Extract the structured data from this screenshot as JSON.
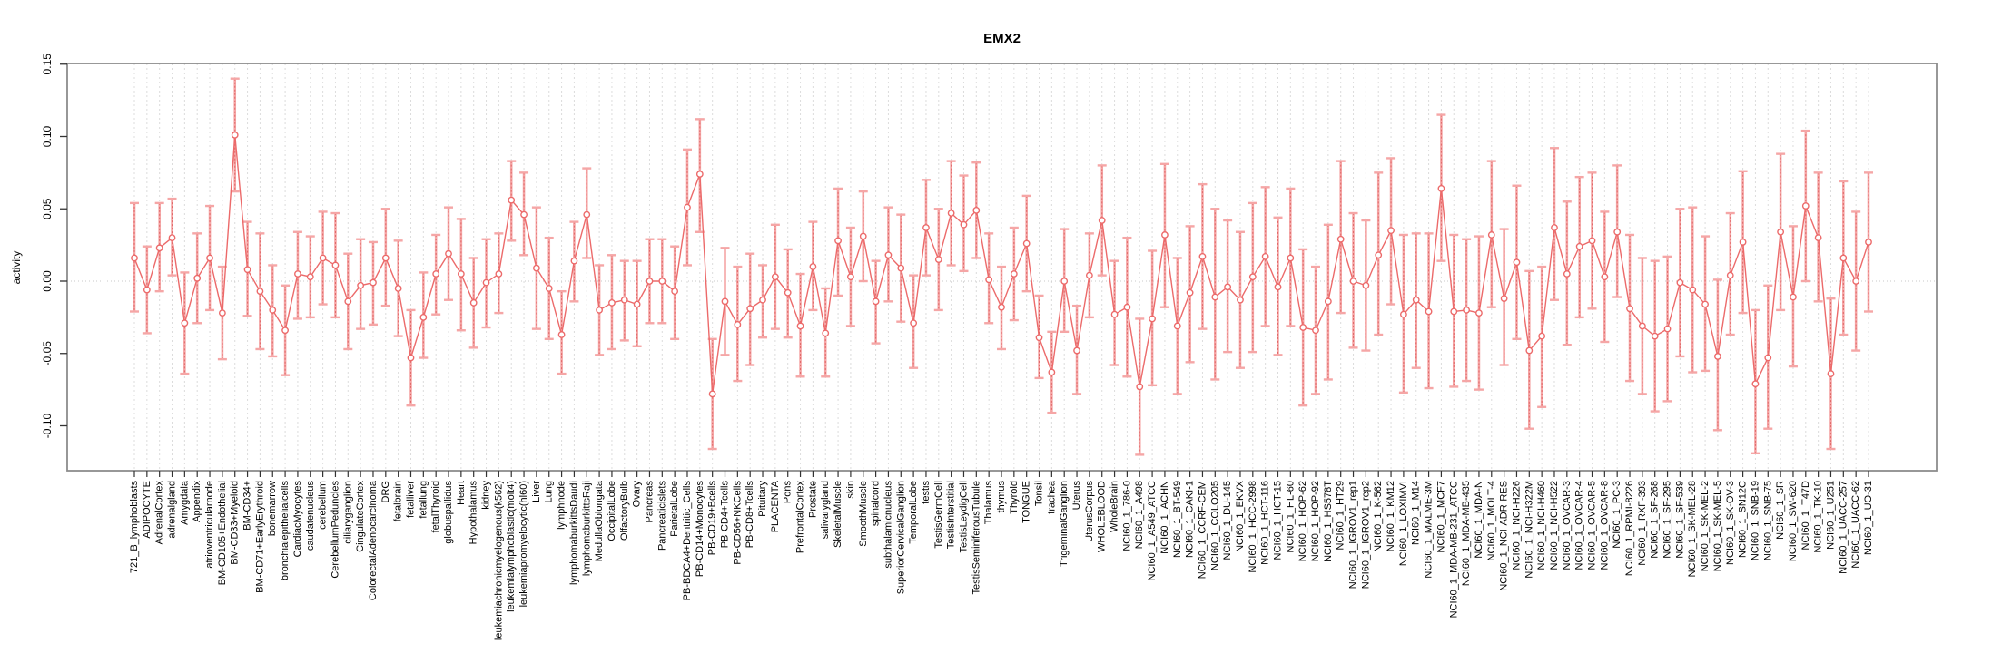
{
  "title": "EMX2",
  "chart_data": {
    "type": "line",
    "subtype": "error-bar-series (R plotCI style)",
    "title": "EMX2",
    "xlabel": "",
    "ylabel": "activity",
    "ylim": [
      -0.131,
      0.15
    ],
    "yticks": [
      0.15,
      0.1,
      0.05,
      0.0,
      -0.05,
      -0.1
    ],
    "ytick_labels": [
      "0.15",
      "0.10",
      "0.05",
      "0.00",
      "-0.05",
      "-0.10"
    ],
    "grid": "light dashed vertical gridline per category; dotted horizontal line at y=0",
    "legend_position": "none",
    "colors": {
      "point_and_line": "#EC6A6A",
      "error_bar": "#F5A6A6",
      "error_bar_core": "#E06868",
      "gridline": "#DCDCDC",
      "zero_line": "#C8C8C8",
      "box": "#8C8C8C",
      "tick": "#333333",
      "text": "#000000",
      "background": "#FFFFFF"
    },
    "n_points": 139,
    "categories": [
      "721_B_lymphoblasts",
      "ADIPOCYTE",
      "AdrenalCortex",
      "adrenalgland",
      "Amygdala",
      "Appendix",
      "atrioventricularnode",
      "BM-CD105+Endothelial",
      "BM-CD33+Myeloid",
      "BM-CD34+",
      "BM-CD71+EarlyErythroid",
      "bonemarrow",
      "bronchialepithelialcells",
      "CardiacMyocytes",
      "caudatenucleus",
      "cerebellum",
      "CerebellumPeduncles",
      "ciliaryganglion",
      "CingulateCortex",
      "ColorectalAdenocarcinoma",
      "DRG",
      "fetalbrain",
      "fetalliver",
      "fetallung",
      "fetalThyroid",
      "globuspallidus",
      "Heart",
      "Hypothalamus",
      "kidney",
      "leukemiachronicmyelogenous(k562)",
      "leukemialymphoblastic(molt4)",
      "leukemiapromyelocytic(hl60)",
      "Liver",
      "Lung",
      "lymphnode",
      "lymphomaburkittsDaudi",
      "lymphomaburkittsRaji",
      "MedullaOblongata",
      "OccipitalLobe",
      "OlfactoryBulb",
      "Ovary",
      "Pancreas",
      "Pancreaticislets",
      "ParietalLobe",
      "PB-BDCA4+Dentritic_Cells",
      "PB-CD14+Monocytes",
      "PB-CD19+Bcells",
      "PB-CD4+Tcells",
      "PB-CD56+NKCells",
      "PB-CD8+Tcells",
      "Pituitary",
      "PLACENTA",
      "Pons",
      "PrefrontalCortex",
      "Prostate",
      "salivarygland",
      "SkeletalMuscle",
      "skin",
      "SmoothMuscle",
      "spinalcord",
      "subthalamicnucleus",
      "SuperiorCervicalGanglion",
      "TemporalLobe",
      "testis",
      "TestisGermCell",
      "TestisInterstitial",
      "TestisLeydigCell",
      "TestisSeminiferousTubule",
      "Thalamus",
      "thymus",
      "Thyroid",
      "TONGUE",
      "Tonsil",
      "trachea",
      "TrigeminalGanglion",
      "Uterus",
      "UterusCorpus",
      "WHOLEBLOOD",
      "WholeBrain",
      "NCI60_1_786-0",
      "NCI60_1_A498",
      "NCI60_1_A549_ATCC",
      "NCI60_1_ACHN",
      "NCI60_1_BT-549",
      "NCI60_1_CAKI-1",
      "NCI60_1_CCRF-CEM",
      "NCI60_1_COLO205",
      "NCI60_1_DU-145",
      "NCI60_1_EKVX",
      "NCI60_1_HCC-2998",
      "NCI60_1_HCT-116",
      "NCI60_1_HCT-15",
      "NCI60_1_HL-60",
      "NCI60_1_HOP-62",
      "NCI60_1_HOP-92",
      "NCI60_1_HS578T",
      "NCI60_1_HT29",
      "NCI60_1_IGROV1_rep1",
      "NCI60_1_IGROV1_rep2",
      "NCI60_1_K-562",
      "NCI60_1_KM12",
      "NCI60_1_LOXIMVI",
      "NCI60_1_M14",
      "NCI60_1_MALME-3M",
      "NCI60_1_MCF7",
      "NCI60_1_MDA-MB-231_ATCC",
      "NCI60_1_MDA-MB-435",
      "NCI60_1_MDA-N",
      "NCI60_1_MOLT-4",
      "NCI60_1_NCI-ADR-RES",
      "NCI60_1_NCI-H226",
      "NCI60_1_NCI-H322M",
      "NCI60_1_NCI-H460",
      "NCI60_1_NCI-H522",
      "NCI60_1_OVCAR-3",
      "NCI60_1_OVCAR-4",
      "NCI60_1_OVCAR-5",
      "NCI60_1_OVCAR-8",
      "NCI60_1_PC-3",
      "NCI60_1_RPMI-8226",
      "NCI60_1_RXF-393",
      "NCI60_1_SF-268",
      "NCI60_1_SF-295",
      "NCI60_1_SF-539",
      "NCI60_1_SK-MEL-28",
      "NCI60_1_SK-MEL-2",
      "NCI60_1_SK-MEL-5",
      "NCI60_1_SK-OV-3",
      "NCI60_1_SN12C",
      "NCI60_1_SNB-19",
      "NCI60_1_SNB-75",
      "NCI60_1_SR",
      "NCI60_1_SW-620",
      "NCI60_1_T47D",
      "NCI60_1_TK-10",
      "NCI60_1_U251",
      "NCI60_1_UACC-257",
      "NCI60_1_UACC-62",
      "NCI60_1_UO-31"
    ],
    "series": [
      {
        "name": "activity",
        "values": [
          0.016,
          -0.006,
          0.023,
          0.03,
          -0.029,
          0.002,
          0.016,
          -0.022,
          0.101,
          0.008,
          -0.007,
          -0.02,
          -0.034,
          0.005,
          0.003,
          0.016,
          0.011,
          -0.014,
          -0.003,
          -0.001,
          0.016,
          -0.005,
          -0.053,
          -0.025,
          0.005,
          0.019,
          0.005,
          -0.015,
          -0.001,
          0.005,
          0.056,
          0.046,
          0.009,
          -0.005,
          -0.037,
          0.014,
          0.046,
          -0.02,
          -0.015,
          -0.013,
          -0.016,
          0.0,
          0.0,
          -0.007,
          0.051,
          0.074,
          -0.078,
          -0.014,
          -0.03,
          -0.019,
          -0.013,
          0.003,
          -0.008,
          -0.031,
          0.01,
          -0.036,
          0.028,
          0.003,
          0.031,
          -0.014,
          0.018,
          0.009,
          -0.029,
          0.037,
          0.015,
          0.047,
          0.039,
          0.049,
          0.001,
          -0.018,
          0.005,
          0.026,
          -0.039,
          -0.063,
          0.0,
          -0.048,
          0.004,
          0.042,
          -0.023,
          -0.018,
          -0.073,
          -0.026,
          0.032,
          -0.031,
          -0.008,
          0.017,
          -0.011,
          -0.004,
          -0.013,
          0.003,
          0.017,
          -0.004,
          0.016,
          -0.032,
          -0.034,
          -0.014,
          0.029,
          0.0,
          -0.003,
          0.018,
          0.035,
          -0.023,
          -0.013,
          -0.021,
          0.064,
          -0.021,
          -0.02,
          -0.022,
          0.032,
          -0.012,
          0.013,
          -0.048,
          -0.038,
          0.037,
          0.005,
          0.024,
          0.028,
          0.003,
          0.034,
          -0.019,
          -0.031,
          -0.038,
          -0.033,
          -0.001,
          -0.006,
          -0.016,
          -0.052,
          0.004,
          0.027,
          -0.071,
          -0.053,
          0.034,
          -0.011,
          0.052,
          0.03,
          -0.064,
          0.016,
          0.0,
          0.027
        ],
        "ci_low": [
          -0.021,
          -0.036,
          -0.007,
          0.004,
          -0.064,
          -0.029,
          -0.02,
          -0.054,
          0.062,
          -0.024,
          -0.047,
          -0.052,
          -0.065,
          -0.026,
          -0.025,
          -0.016,
          -0.025,
          -0.047,
          -0.033,
          -0.03,
          -0.017,
          -0.038,
          -0.086,
          -0.053,
          -0.023,
          -0.013,
          -0.034,
          -0.046,
          -0.032,
          -0.022,
          0.028,
          0.018,
          -0.033,
          -0.04,
          -0.064,
          -0.014,
          0.016,
          -0.051,
          -0.047,
          -0.041,
          -0.045,
          -0.029,
          -0.029,
          -0.04,
          0.011,
          0.034,
          -0.116,
          -0.051,
          -0.069,
          -0.058,
          -0.039,
          -0.033,
          -0.039,
          -0.066,
          -0.02,
          -0.066,
          -0.01,
          -0.031,
          0.0,
          -0.043,
          -0.014,
          -0.028,
          -0.06,
          0.004,
          -0.02,
          0.011,
          0.007,
          0.016,
          -0.029,
          -0.047,
          -0.027,
          -0.007,
          -0.067,
          -0.091,
          -0.035,
          -0.078,
          -0.025,
          0.004,
          -0.058,
          -0.066,
          -0.12,
          -0.072,
          -0.018,
          -0.078,
          -0.056,
          -0.033,
          -0.068,
          -0.049,
          -0.06,
          -0.049,
          -0.031,
          -0.051,
          -0.031,
          -0.086,
          -0.078,
          -0.068,
          -0.022,
          -0.046,
          -0.048,
          -0.037,
          -0.016,
          -0.077,
          -0.06,
          -0.074,
          0.014,
          -0.073,
          -0.069,
          -0.075,
          -0.018,
          -0.058,
          -0.04,
          -0.102,
          -0.087,
          -0.013,
          -0.044,
          -0.025,
          -0.019,
          -0.042,
          -0.011,
          -0.069,
          -0.078,
          -0.09,
          -0.083,
          -0.052,
          -0.063,
          -0.062,
          -0.103,
          -0.037,
          -0.022,
          -0.119,
          -0.102,
          -0.02,
          -0.059,
          0.0,
          -0.014,
          -0.116,
          -0.037,
          -0.048,
          -0.021
        ],
        "ci_high": [
          0.054,
          0.024,
          0.054,
          0.057,
          0.006,
          0.033,
          0.052,
          0.01,
          0.14,
          0.041,
          0.033,
          0.011,
          -0.003,
          0.034,
          0.031,
          0.048,
          0.047,
          0.019,
          0.029,
          0.027,
          0.05,
          0.028,
          -0.02,
          0.006,
          0.032,
          0.051,
          0.043,
          0.016,
          0.029,
          0.033,
          0.083,
          0.075,
          0.051,
          0.03,
          -0.007,
          0.041,
          0.078,
          0.011,
          0.018,
          0.014,
          0.014,
          0.029,
          0.029,
          0.024,
          0.091,
          0.112,
          -0.04,
          0.023,
          0.01,
          0.019,
          0.011,
          0.039,
          0.022,
          0.005,
          0.041,
          -0.005,
          0.064,
          0.037,
          0.062,
          0.014,
          0.051,
          0.046,
          0.004,
          0.07,
          0.05,
          0.083,
          0.073,
          0.082,
          0.033,
          0.01,
          0.037,
          0.059,
          -0.01,
          -0.035,
          0.036,
          -0.017,
          0.033,
          0.08,
          0.014,
          0.03,
          -0.026,
          0.021,
          0.081,
          0.016,
          0.038,
          0.067,
          0.05,
          0.042,
          0.034,
          0.054,
          0.065,
          0.044,
          0.064,
          0.022,
          0.01,
          0.039,
          0.083,
          0.047,
          0.042,
          0.075,
          0.085,
          0.032,
          0.033,
          0.033,
          0.115,
          0.032,
          0.029,
          0.031,
          0.083,
          0.036,
          0.066,
          0.007,
          0.01,
          0.092,
          0.055,
          0.072,
          0.075,
          0.048,
          0.08,
          0.032,
          0.016,
          0.014,
          0.017,
          0.05,
          0.051,
          0.031,
          0.001,
          0.047,
          0.076,
          -0.02,
          -0.003,
          0.088,
          0.038,
          0.104,
          0.075,
          -0.012,
          0.069,
          0.048,
          0.075
        ]
      }
    ]
  }
}
